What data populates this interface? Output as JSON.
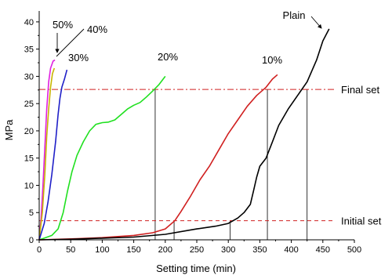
{
  "chart_data": {
    "type": "line",
    "xlabel": "Setting time (min)",
    "ylabel": "MPa",
    "xlim": [
      0,
      500
    ],
    "ylim": [
      0,
      42
    ],
    "x_ticks": [
      0,
      50,
      100,
      150,
      200,
      250,
      300,
      350,
      400,
      450,
      500
    ],
    "y_ticks": [
      0,
      5,
      10,
      15,
      20,
      25,
      30,
      35,
      40
    ],
    "grid": false,
    "legend": "none",
    "series": [
      {
        "name": "50%",
        "color": "#e020e0",
        "points": [
          [
            0,
            0
          ],
          [
            3,
            4
          ],
          [
            6,
            10
          ],
          [
            9,
            17
          ],
          [
            12,
            24
          ],
          [
            15,
            29
          ],
          [
            18,
            31.5
          ],
          [
            22,
            32.8
          ],
          [
            25,
            33
          ]
        ]
      },
      {
        "name": "40%",
        "color": "#c8b400",
        "points": [
          [
            0,
            0
          ],
          [
            5,
            5
          ],
          [
            9,
            12
          ],
          [
            12,
            19
          ],
          [
            15,
            24
          ],
          [
            18,
            28
          ],
          [
            21,
            30.5
          ],
          [
            24,
            31.5
          ]
        ]
      },
      {
        "name": "30%",
        "color": "#2020c8",
        "points": [
          [
            0,
            0
          ],
          [
            8,
            3
          ],
          [
            14,
            7
          ],
          [
            20,
            12
          ],
          [
            26,
            18
          ],
          [
            30,
            23
          ],
          [
            33,
            26
          ],
          [
            36,
            28
          ],
          [
            40,
            29.5
          ],
          [
            44,
            31.2
          ]
        ]
      },
      {
        "name": "20%",
        "color": "#20e020",
        "points": [
          [
            0,
            0
          ],
          [
            8,
            0.3
          ],
          [
            20,
            0.8
          ],
          [
            30,
            2
          ],
          [
            38,
            5
          ],
          [
            45,
            9
          ],
          [
            52,
            12.5
          ],
          [
            60,
            15.5
          ],
          [
            70,
            18
          ],
          [
            80,
            20
          ],
          [
            90,
            21.2
          ],
          [
            100,
            21.5
          ],
          [
            110,
            21.6
          ],
          [
            120,
            22
          ],
          [
            130,
            23
          ],
          [
            140,
            24
          ],
          [
            150,
            24.7
          ],
          [
            160,
            25.2
          ],
          [
            170,
            26.2
          ],
          [
            180,
            27.3
          ],
          [
            190,
            28.5
          ],
          [
            200,
            30
          ]
        ]
      },
      {
        "name": "10%",
        "color": "#d02020",
        "points": [
          [
            0,
            0
          ],
          [
            30,
            0.1
          ],
          [
            60,
            0.2
          ],
          [
            100,
            0.4
          ],
          [
            150,
            0.8
          ],
          [
            180,
            1.3
          ],
          [
            200,
            2
          ],
          [
            215,
            3.5
          ],
          [
            225,
            5.2
          ],
          [
            240,
            8
          ],
          [
            255,
            11
          ],
          [
            270,
            13.5
          ],
          [
            285,
            16.5
          ],
          [
            300,
            19.5
          ],
          [
            315,
            22
          ],
          [
            330,
            24.5
          ],
          [
            345,
            26.5
          ],
          [
            360,
            28
          ],
          [
            370,
            29.5
          ],
          [
            378,
            30.3
          ]
        ]
      },
      {
        "name": "Plain",
        "color": "#000000",
        "points": [
          [
            0,
            0
          ],
          [
            50,
            0.1
          ],
          [
            100,
            0.3
          ],
          [
            150,
            0.5
          ],
          [
            200,
            1
          ],
          [
            250,
            2
          ],
          [
            280,
            2.5
          ],
          [
            300,
            3
          ],
          [
            315,
            4
          ],
          [
            325,
            5
          ],
          [
            335,
            6.5
          ],
          [
            340,
            9
          ],
          [
            345,
            11.5
          ],
          [
            350,
            13.5
          ],
          [
            360,
            15
          ],
          [
            370,
            18
          ],
          [
            380,
            21
          ],
          [
            395,
            24
          ],
          [
            410,
            26.5
          ],
          [
            425,
            29
          ],
          [
            440,
            33
          ],
          [
            450,
            36.5
          ],
          [
            460,
            38.7
          ]
        ]
      }
    ],
    "reference_lines": [
      {
        "label": "Final set",
        "y": 27.6,
        "color": "#d02020",
        "style": "dash-dot"
      },
      {
        "label": "Initial set",
        "y": 3.5,
        "color": "#d02020",
        "style": "dash"
      }
    ],
    "drop_lines": [
      {
        "x": 184,
        "y_from": 0,
        "y_to": 27.6
      },
      {
        "x": 214,
        "y_from": 0,
        "y_to": 3.5
      },
      {
        "x": 303,
        "y_from": 0,
        "y_to": 3.5
      },
      {
        "x": 362,
        "y_from": 0,
        "y_to": 27.6
      },
      {
        "x": 425,
        "y_from": 0,
        "y_to": 27.6
      }
    ]
  }
}
